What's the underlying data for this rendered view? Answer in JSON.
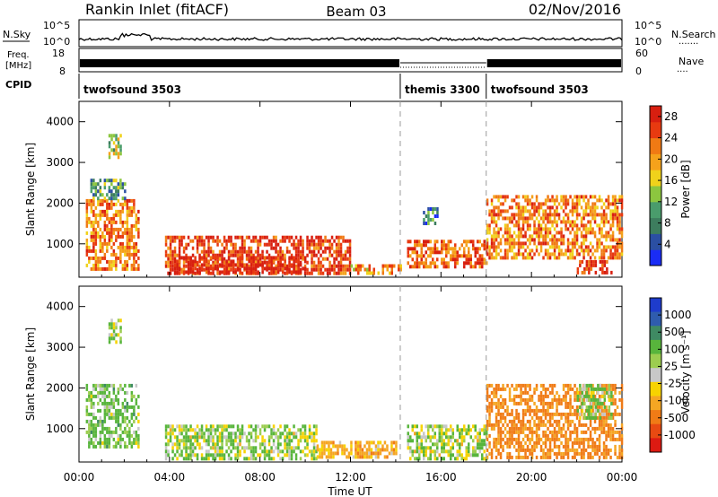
{
  "header": {
    "station": "Rankin Inlet (fitACF)",
    "beam": "Beam 03",
    "date": "02/Nov/2016"
  },
  "top_panels": {
    "nsky_label": "N.Sky",
    "nsearch_label": "N.Search",
    "nsearch_dots": "·······",
    "freq_label_line1": "Freq.",
    "freq_label_line2": "[MHz]",
    "nave_label": "Nave",
    "nave_dots": "····",
    "cpid_label": "CPID",
    "noise_ticks": [
      "10^5",
      "10^0"
    ],
    "freq_ticks": [
      "18",
      "8"
    ],
    "nave_ticks": [
      "60",
      "0"
    ]
  },
  "cpid_segments": [
    {
      "label": "twofsound 3503",
      "start_hr": 0,
      "end_hr": 14.2
    },
    {
      "label": "themis 3300",
      "start_hr": 14.2,
      "end_hr": 18.0
    },
    {
      "label": "twofsound 3503",
      "start_hr": 18.0,
      "end_hr": 24
    }
  ],
  "colors": {
    "power": [
      "#1a2cf5",
      "#2b4fa3",
      "#3d7d5e",
      "#4a9c6c",
      "#8cc63f",
      "#f0d21b",
      "#f5a21b",
      "#f07a14",
      "#e83a10",
      "#d81f10"
    ],
    "velocity": [
      "#1e3ccc",
      "#2f5cae",
      "#3f8a63",
      "#58b53c",
      "#9ccd50",
      "#c8c8c8",
      "#f7d300",
      "#f5a623",
      "#f07b16",
      "#e84a12",
      "#dd1a12"
    ]
  },
  "chart_data": [
    {
      "type": "heatmap",
      "title": "Power",
      "ylabel": "Slant Range [km]",
      "xlabel": "",
      "xlim_hr": [
        0,
        24
      ],
      "ylim_km": [
        180,
        4500
      ],
      "y_ticks": [
        "1000",
        "2000",
        "3000",
        "4000"
      ],
      "colorbar_label": "Power [dB]",
      "colorbar_ticks": [
        "4",
        "8",
        "12",
        "16",
        "20",
        "24",
        "28"
      ],
      "colorbar_range": [
        0,
        30
      ],
      "regions": [
        {
          "t0": 0.3,
          "t1": 2.6,
          "r0": 400,
          "r1": 2100,
          "level": 22
        },
        {
          "t0": 0.5,
          "t1": 2.0,
          "r0": 2100,
          "r1": 2600,
          "level": 10
        },
        {
          "t0": 1.3,
          "t1": 1.8,
          "r0": 3100,
          "r1": 3700,
          "level": 14
        },
        {
          "t0": 3.8,
          "t1": 12.0,
          "r0": 200,
          "r1": 1200,
          "level": 26
        },
        {
          "t0": 4.2,
          "t1": 10.0,
          "r0": 200,
          "r1": 700,
          "level": 29
        },
        {
          "t0": 12.0,
          "t1": 14.2,
          "r0": 200,
          "r1": 500,
          "level": 20
        },
        {
          "t0": 14.5,
          "t1": 18.0,
          "r0": 400,
          "r1": 1100,
          "level": 24
        },
        {
          "t0": 15.2,
          "t1": 15.8,
          "r0": 1500,
          "r1": 1900,
          "level": 8
        },
        {
          "t0": 18.0,
          "t1": 24.0,
          "r0": 700,
          "r1": 2200,
          "level": 22
        },
        {
          "t0": 22.0,
          "t1": 23.5,
          "r0": 200,
          "r1": 600,
          "level": 28
        }
      ]
    },
    {
      "type": "heatmap",
      "title": "Velocity",
      "ylabel": "Slant Range [km]",
      "xlabel": "Time UT",
      "x_ticks": [
        "00:00",
        "04:00",
        "08:00",
        "12:00",
        "16:00",
        "20:00",
        "00:00"
      ],
      "xlim_hr": [
        0,
        24
      ],
      "ylim_km": [
        180,
        4500
      ],
      "y_ticks": [
        "1000",
        "2000",
        "3000",
        "4000"
      ],
      "colorbar_label": "Velocity [m s⁻¹]",
      "colorbar_ticks": [
        "1000",
        "500",
        "100",
        "25",
        "-25",
        "-100",
        "-500",
        "-1000"
      ],
      "regions": [
        {
          "t0": 0.3,
          "t1": 2.6,
          "r0": 600,
          "r1": 2100,
          "vel": 120
        },
        {
          "t0": 1.3,
          "t1": 1.8,
          "r0": 3100,
          "r1": 3700,
          "vel": 80
        },
        {
          "t0": 3.8,
          "t1": 10.5,
          "r0": 200,
          "r1": 1100,
          "vel": 60
        },
        {
          "t0": 10.5,
          "t1": 14.0,
          "r0": 200,
          "r1": 700,
          "vel": -150
        },
        {
          "t0": 14.5,
          "t1": 18.0,
          "r0": 200,
          "r1": 1100,
          "vel": 60
        },
        {
          "t0": 18.0,
          "t1": 24.0,
          "r0": 300,
          "r1": 2100,
          "vel": -300
        },
        {
          "t0": 22.0,
          "t1": 23.5,
          "r0": 1300,
          "r1": 2100,
          "vel": 100
        }
      ]
    }
  ]
}
